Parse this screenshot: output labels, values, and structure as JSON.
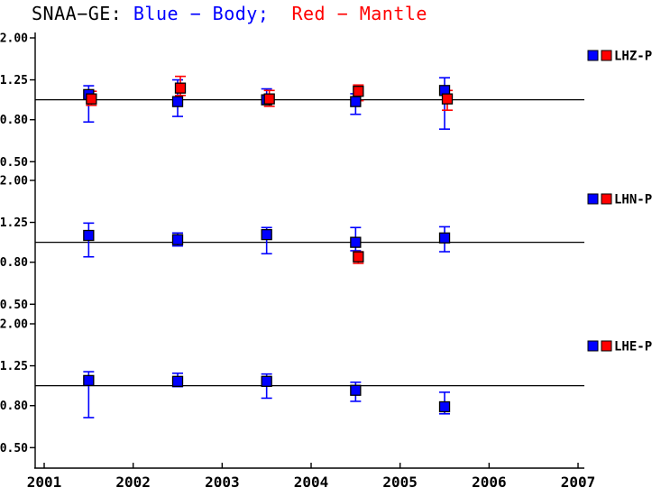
{
  "chart_data": {
    "type": "scatter",
    "title_parts": [
      {
        "text": "SNAA−GE: ",
        "color": "#000000"
      },
      {
        "text": "Blue − Body;  ",
        "color": "#0000ff"
      },
      {
        "text": "Red − Mantle",
        "color": "#ff0000"
      }
    ],
    "colors": {
      "blue": "#0000ff",
      "red": "#ff0000",
      "axis": "#000000"
    },
    "x_axis": {
      "min": 2001,
      "max": 2007,
      "ticks": [
        2001,
        2002,
        2003,
        2004,
        2005,
        2006,
        2007
      ]
    },
    "y_axis": {
      "scale": "log",
      "tick_labels": [
        "2.00",
        "1.25",
        "0.80",
        "0.50"
      ],
      "tick_values": [
        2.0,
        1.25,
        0.8,
        0.5
      ],
      "reference_line": 1.0
    },
    "panels": [
      {
        "label": "LHZ-P",
        "series": [
          {
            "name": "Body",
            "color": "blue",
            "points": [
              {
                "x": 2001.5,
                "v": 1.06,
                "lo": 0.78,
                "hi": 1.17
              },
              {
                "x": 2002.5,
                "v": 0.98,
                "lo": 0.83,
                "hi": 1.25
              },
              {
                "x": 2003.5,
                "v": 1.0,
                "lo": 0.95,
                "hi": 1.13
              },
              {
                "x": 2004.5,
                "v": 0.98,
                "lo": 0.85,
                "hi": 1.07
              },
              {
                "x": 2005.5,
                "v": 1.11,
                "lo": 0.72,
                "hi": 1.28
              }
            ]
          },
          {
            "name": "Mantle",
            "color": "red",
            "points": [
              {
                "x": 2001.5,
                "v": 1.01,
                "lo": 0.94,
                "hi": 1.1
              },
              {
                "x": 2002.5,
                "v": 1.14,
                "lo": 1.05,
                "hi": 1.3
              },
              {
                "x": 2003.5,
                "v": 1.01,
                "lo": 0.93,
                "hi": 1.11
              },
              {
                "x": 2004.5,
                "v": 1.1,
                "lo": 0.99,
                "hi": 1.18
              },
              {
                "x": 2005.5,
                "v": 1.01,
                "lo": 0.89,
                "hi": 1.11
              }
            ]
          }
        ]
      },
      {
        "label": "LHN-P",
        "series": [
          {
            "name": "Body",
            "color": "blue",
            "points": [
              {
                "x": 2001.5,
                "v": 1.08,
                "lo": 0.85,
                "hi": 1.24
              },
              {
                "x": 2002.5,
                "v": 1.03,
                "lo": 0.96,
                "hi": 1.11
              },
              {
                "x": 2003.5,
                "v": 1.09,
                "lo": 0.88,
                "hi": 1.18
              },
              {
                "x": 2004.5,
                "v": 1.0,
                "lo": 0.91,
                "hi": 1.18
              },
              {
                "x": 2005.5,
                "v": 1.05,
                "lo": 0.9,
                "hi": 1.19
              }
            ]
          },
          {
            "name": "Mantle",
            "color": "red",
            "points": [
              {
                "x": 2004.5,
                "v": 0.85,
                "lo": 0.79,
                "hi": 0.9
              }
            ]
          }
        ]
      },
      {
        "label": "LHE-P",
        "series": [
          {
            "name": "Body",
            "color": "blue",
            "points": [
              {
                "x": 2001.5,
                "v": 1.06,
                "lo": 0.7,
                "hi": 1.17
              },
              {
                "x": 2002.5,
                "v": 1.05,
                "lo": 0.99,
                "hi": 1.15
              },
              {
                "x": 2003.5,
                "v": 1.05,
                "lo": 0.87,
                "hi": 1.14
              },
              {
                "x": 2004.5,
                "v": 0.95,
                "lo": 0.84,
                "hi": 1.04
              },
              {
                "x": 2005.5,
                "v": 0.79,
                "lo": 0.73,
                "hi": 0.93
              }
            ]
          },
          {
            "name": "Mantle",
            "color": "red",
            "points": []
          }
        ]
      }
    ]
  }
}
